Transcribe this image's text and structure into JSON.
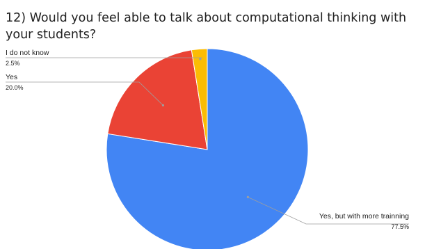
{
  "chart_data": {
    "type": "pie",
    "title": "12) Would you feel able to talk about computational thinking with your students?",
    "slices": [
      {
        "label": "Yes, but with more trainning",
        "value": 77.5,
        "percent_label": "77.5%",
        "color": "#4285f4"
      },
      {
        "label": "Yes",
        "value": 20.0,
        "percent_label": "20.0%",
        "color": "#ea4335"
      },
      {
        "label": "I do not know",
        "value": 2.5,
        "percent_label": "2.5%",
        "color": "#fbbc04"
      }
    ],
    "legend": "none",
    "start_angle": "12 o'clock",
    "direction": "clockwise"
  }
}
